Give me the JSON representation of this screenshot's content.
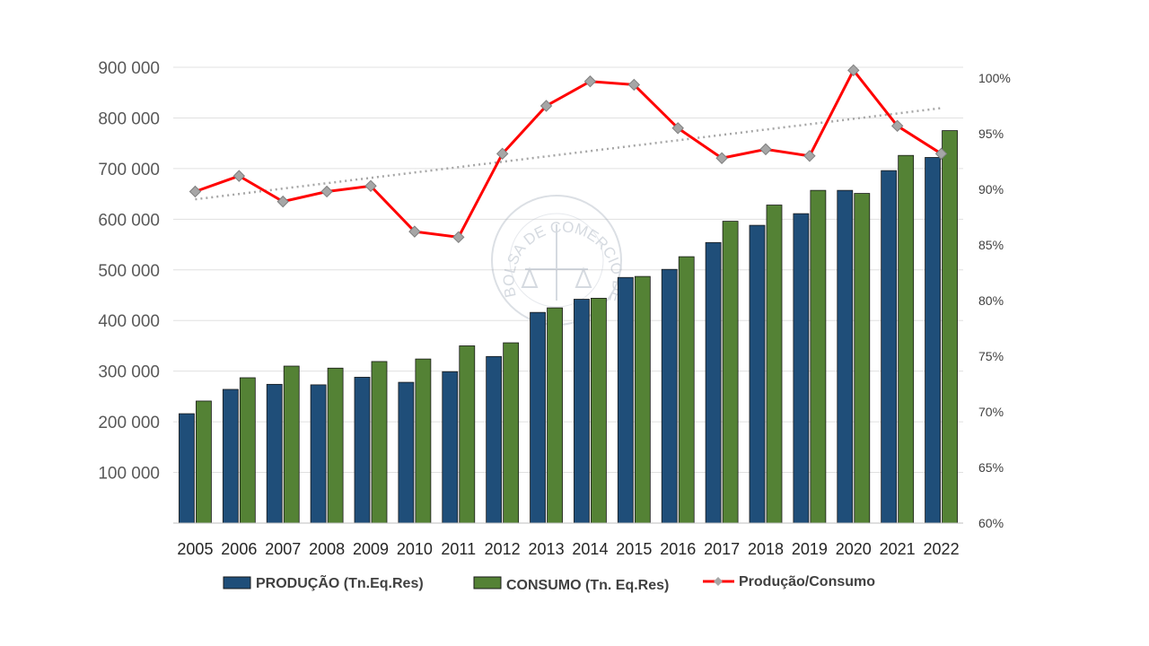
{
  "chart_data": {
    "type": "bar+line",
    "title": "",
    "categories": [
      "2005",
      "2006",
      "2007",
      "2008",
      "2009",
      "2010",
      "2011",
      "2012",
      "2013",
      "2014",
      "2015",
      "2016",
      "2017",
      "2018",
      "2019",
      "2020",
      "2021",
      "2022"
    ],
    "left_axis": {
      "ylim": [
        0,
        900000
      ],
      "ticks": [
        "100 000",
        "200 000",
        "300 000",
        "400 000",
        "500 000",
        "600 000",
        "700 000",
        "800 000",
        "900 000"
      ],
      "tick_values": [
        100000,
        200000,
        300000,
        400000,
        500000,
        600000,
        700000,
        800000,
        900000
      ],
      "grid": true
    },
    "right_axis": {
      "ylim": [
        60,
        100
      ],
      "ticks": [
        "60%",
        "65%",
        "70%",
        "75%",
        "80%",
        "85%",
        "90%",
        "95%",
        "100%"
      ],
      "tick_values": [
        60,
        65,
        70,
        75,
        80,
        85,
        90,
        95,
        100
      ]
    },
    "series": [
      {
        "name": "PRODUÇÃO (Tn.Eq.Res)",
        "type": "bar",
        "axis": "left",
        "color": "#1f4e79",
        "values": [
          216000,
          264000,
          274000,
          273000,
          288000,
          278000,
          299000,
          329000,
          416000,
          442000,
          485000,
          501000,
          554000,
          588000,
          611000,
          657000,
          696000,
          722000
        ]
      },
      {
        "name": "CONSUMO (Tn. Eq.Res)",
        "type": "bar",
        "axis": "left",
        "color": "#548235",
        "values": [
          241000,
          287000,
          310000,
          306000,
          319000,
          324000,
          350000,
          356000,
          425000,
          444000,
          487000,
          526000,
          596000,
          628000,
          657000,
          651000,
          726000,
          775000
        ]
      },
      {
        "name": "Produção/Consumo",
        "type": "line",
        "axis": "right",
        "color": "#ff0000",
        "marker": "diamond",
        "marker_color": "#a6a6a6",
        "values": [
          89.8,
          91.2,
          88.9,
          89.8,
          90.3,
          86.2,
          85.7,
          93.2,
          97.5,
          99.7,
          99.4,
          95.5,
          92.8,
          93.6,
          93.0,
          100.7,
          95.7,
          93.2
        ]
      }
    ],
    "trendline": {
      "series": "Produção/Consumo",
      "type": "linear",
      "style": "dotted",
      "color": "#a6a6a6",
      "start": 89.1,
      "end": 97.3
    },
    "legend_placement": "bottom",
    "watermark": "BOLSA DE COMERCIO DE ROSARIO"
  }
}
